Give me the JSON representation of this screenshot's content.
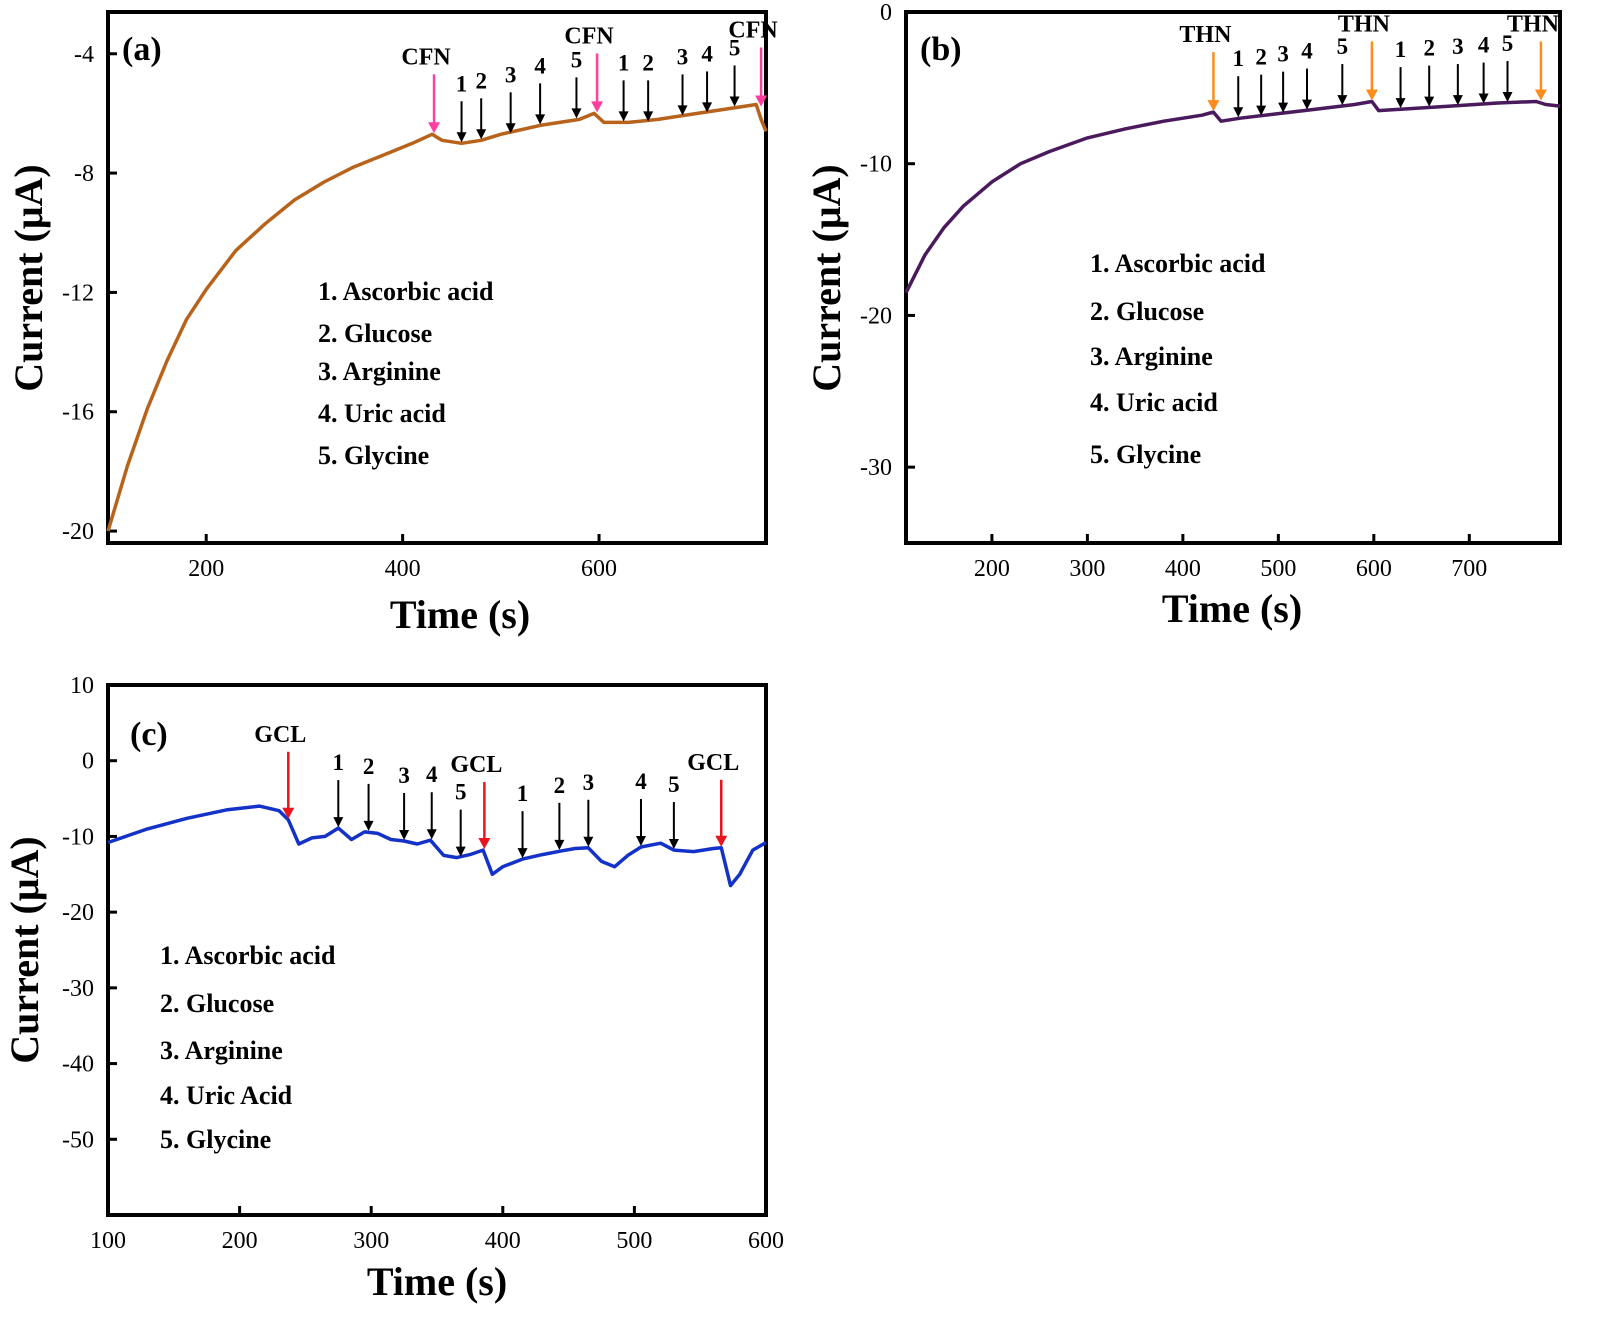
{
  "chart_data": [
    {
      "type": "line",
      "panel_label": "(a)",
      "xlabel": "Time (s)",
      "ylabel": "Current (μA)",
      "xlim": [
        100,
        770
      ],
      "ylim": [
        -20.4,
        -2.6
      ],
      "xticks": [
        200,
        400,
        600
      ],
      "yticks": [
        -20,
        -16,
        -12,
        -8,
        -4
      ],
      "ytick_labels": [
        "-20",
        "-16",
        "-12",
        "-8",
        "-4"
      ],
      "line_color": "#b8631c",
      "marker_color": "#ff3fa0",
      "legend": [
        "1. Ascorbic acid",
        "2. Glucose",
        "3. Arginine",
        "4. Uric acid",
        "5. Glycine"
      ],
      "series": [
        {
          "x": [
            100,
            120,
            140,
            160,
            180,
            200,
            230,
            260,
            290,
            320,
            350,
            380,
            410,
            430,
            440,
            460,
            480,
            500,
            540,
            580,
            595,
            605,
            630,
            660,
            700,
            740,
            760,
            765,
            770
          ],
          "values": [
            -20.0,
            -17.8,
            -15.9,
            -14.3,
            -12.9,
            -11.9,
            -10.6,
            -9.7,
            -8.9,
            -8.3,
            -7.8,
            -7.4,
            -7.0,
            -6.7,
            -6.9,
            -7.0,
            -6.9,
            -6.7,
            -6.4,
            -6.2,
            -6.0,
            -6.3,
            -6.3,
            -6.2,
            -6.0,
            -5.8,
            -5.7,
            -6.2,
            -6.6
          ]
        }
      ],
      "markers": [
        {
          "label": "CFN",
          "x": 432,
          "y": -6.7
        },
        {
          "label": "CFN",
          "x": 598,
          "y": -6.0
        },
        {
          "label": "CFN",
          "x": 765,
          "y": -5.8
        }
      ],
      "analytes": [
        {
          "label": "1",
          "x": 460,
          "y": -7.0
        },
        {
          "label": "2",
          "x": 480,
          "y": -6.9
        },
        {
          "label": "3",
          "x": 510,
          "y": -6.7
        },
        {
          "label": "4",
          "x": 540,
          "y": -6.4
        },
        {
          "label": "5",
          "x": 577,
          "y": -6.2
        },
        {
          "label": "1",
          "x": 625,
          "y": -6.3
        },
        {
          "label": "2",
          "x": 650,
          "y": -6.3
        },
        {
          "label": "3",
          "x": 685,
          "y": -6.1
        },
        {
          "label": "4",
          "x": 710,
          "y": -6.0
        },
        {
          "label": "5",
          "x": 738,
          "y": -5.8
        }
      ]
    },
    {
      "type": "line",
      "panel_label": "(b)",
      "xlabel": "Time (s)",
      "ylabel": "Current (μA)",
      "xlim": [
        110,
        795
      ],
      "ylim": [
        -35,
        0
      ],
      "xticks": [
        200,
        300,
        400,
        500,
        600,
        700
      ],
      "yticks": [
        -30,
        -20,
        -10,
        0
      ],
      "ytick_labels": [
        "-30",
        "-20",
        "-10",
        "0"
      ],
      "line_color": "#4a1a5c",
      "marker_color": "#ff8c1a",
      "legend": [
        "1. Ascorbic acid",
        "2. Glucose",
        "3. Arginine",
        "4. Uric acid",
        "5. Glycine"
      ],
      "series": [
        {
          "x": [
            110,
            130,
            150,
            170,
            200,
            230,
            260,
            300,
            340,
            380,
            420,
            432,
            440,
            460,
            500,
            540,
            580,
            598,
            605,
            630,
            680,
            730,
            770,
            780,
            795
          ],
          "values": [
            -18.5,
            -16.0,
            -14.2,
            -12.8,
            -11.2,
            -10.0,
            -9.2,
            -8.3,
            -7.7,
            -7.2,
            -6.8,
            -6.6,
            -7.2,
            -7.0,
            -6.7,
            -6.4,
            -6.1,
            -5.9,
            -6.5,
            -6.4,
            -6.2,
            -6.0,
            -5.9,
            -6.1,
            -6.2
          ]
        }
      ],
      "markers": [
        {
          "label": "THN",
          "x": 432,
          "y": -6.6
        },
        {
          "label": "THN",
          "x": 598,
          "y": -5.9
        },
        {
          "label": "THN",
          "x": 775,
          "y": -5.9
        }
      ],
      "analytes": [
        {
          "label": "1",
          "x": 458,
          "y": -7.0
        },
        {
          "label": "2",
          "x": 482,
          "y": -6.9
        },
        {
          "label": "3",
          "x": 505,
          "y": -6.7
        },
        {
          "label": "4",
          "x": 530,
          "y": -6.5
        },
        {
          "label": "5",
          "x": 567,
          "y": -6.2
        },
        {
          "label": "1",
          "x": 628,
          "y": -6.4
        },
        {
          "label": "2",
          "x": 658,
          "y": -6.3
        },
        {
          "label": "3",
          "x": 688,
          "y": -6.2
        },
        {
          "label": "4",
          "x": 715,
          "y": -6.1
        },
        {
          "label": "5",
          "x": 740,
          "y": -6.0
        }
      ]
    },
    {
      "type": "line",
      "panel_label": "(c)",
      "xlabel": "Time (s)",
      "ylabel": "Current (μA)",
      "xlim": [
        100,
        600
      ],
      "ylim": [
        -60,
        10
      ],
      "xticks": [
        100,
        200,
        300,
        400,
        500,
        600
      ],
      "yticks": [
        -50,
        -40,
        -30,
        -20,
        -10,
        0,
        10
      ],
      "ytick_labels": [
        "-50",
        "-40",
        "-30",
        "-20",
        "-10",
        "0",
        "10"
      ],
      "line_color": "#1432c8",
      "marker_color": "#e8141e",
      "legend": [
        "1. Ascorbic acid",
        "2. Glucose",
        "3. Arginine",
        "4. Uric Acid",
        "5. Glycine"
      ],
      "series": [
        {
          "x": [
            100,
            130,
            160,
            190,
            215,
            230,
            237,
            245,
            255,
            265,
            275,
            285,
            295,
            305,
            315,
            325,
            335,
            345,
            355,
            365,
            375,
            385,
            392,
            400,
            415,
            430,
            445,
            455,
            465,
            475,
            485,
            495,
            505,
            520,
            530,
            545,
            560,
            566,
            573,
            580,
            590,
            600
          ],
          "values": [
            -10.8,
            -9.0,
            -7.6,
            -6.5,
            -6.0,
            -6.6,
            -7.8,
            -11.0,
            -10.2,
            -10.0,
            -8.9,
            -10.4,
            -9.4,
            -9.6,
            -10.4,
            -10.6,
            -11.0,
            -10.5,
            -12.5,
            -12.8,
            -12.4,
            -11.8,
            -15.0,
            -14.0,
            -13.0,
            -12.4,
            -11.9,
            -11.6,
            -11.5,
            -13.3,
            -14.0,
            -12.5,
            -11.4,
            -10.9,
            -11.8,
            -12.0,
            -11.6,
            -11.5,
            -16.5,
            -15.0,
            -11.8,
            -10.8
          ]
        }
      ],
      "markers": [
        {
          "label": "GCL",
          "x": 237,
          "y": -7.8
        },
        {
          "label": "GCL",
          "x": 386,
          "y": -11.8
        },
        {
          "label": "GCL",
          "x": 566,
          "y": -11.5
        }
      ],
      "analytes": [
        {
          "label": "1",
          "x": 275,
          "y": -8.9
        },
        {
          "label": "2",
          "x": 298,
          "y": -9.4
        },
        {
          "label": "3",
          "x": 325,
          "y": -10.6
        },
        {
          "label": "4",
          "x": 346,
          "y": -10.5
        },
        {
          "label": "5",
          "x": 368,
          "y": -12.8
        },
        {
          "label": "1",
          "x": 415,
          "y": -13.0
        },
        {
          "label": "2",
          "x": 443,
          "y": -11.9
        },
        {
          "label": "3",
          "x": 465,
          "y": -11.5
        },
        {
          "label": "4",
          "x": 505,
          "y": -11.4
        },
        {
          "label": "5",
          "x": 530,
          "y": -11.8
        }
      ]
    }
  ]
}
